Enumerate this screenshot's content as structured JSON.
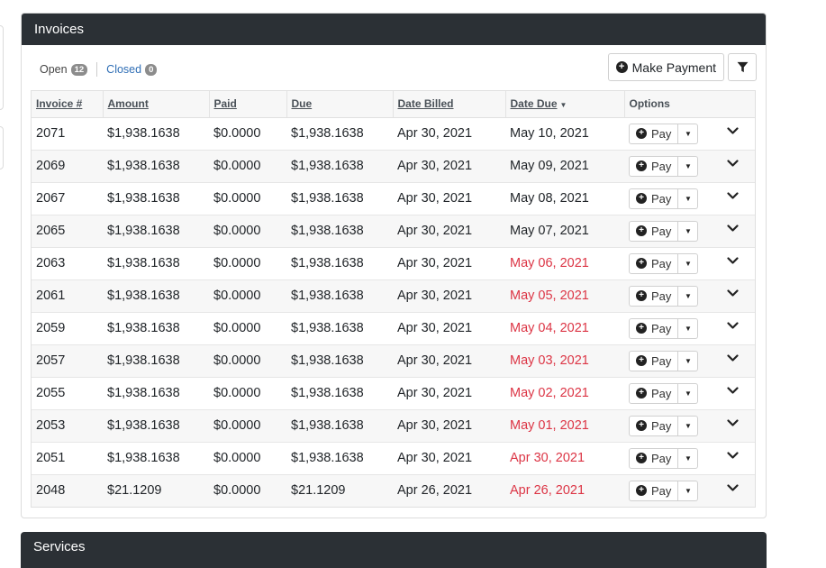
{
  "invoices_panel": {
    "title": "Invoices",
    "tabs": [
      {
        "label": "Open",
        "count": "12"
      },
      {
        "label": "Closed",
        "count": "0"
      }
    ],
    "make_payment_label": "Make Payment",
    "plus_glyph": "+",
    "filter_icon": "filter-icon",
    "columns": [
      "Invoice #",
      "Amount",
      "Paid",
      "Due",
      "Date Billed",
      "Date Due",
      "Options"
    ],
    "sorted_column": "Date Due",
    "pay_label": "Pay",
    "overdue_color": "#dc3545",
    "header_bg_color": "#2b3035",
    "rows": [
      {
        "invoice": "2071",
        "amount": "$1,938.1638",
        "paid": "$0.0000",
        "due": "$1,938.1638",
        "billed": "Apr 30, 2021",
        "date_due": "May 10, 2021",
        "overdue": false
      },
      {
        "invoice": "2069",
        "amount": "$1,938.1638",
        "paid": "$0.0000",
        "due": "$1,938.1638",
        "billed": "Apr 30, 2021",
        "date_due": "May 09, 2021",
        "overdue": false
      },
      {
        "invoice": "2067",
        "amount": "$1,938.1638",
        "paid": "$0.0000",
        "due": "$1,938.1638",
        "billed": "Apr 30, 2021",
        "date_due": "May 08, 2021",
        "overdue": false
      },
      {
        "invoice": "2065",
        "amount": "$1,938.1638",
        "paid": "$0.0000",
        "due": "$1,938.1638",
        "billed": "Apr 30, 2021",
        "date_due": "May 07, 2021",
        "overdue": false
      },
      {
        "invoice": "2063",
        "amount": "$1,938.1638",
        "paid": "$0.0000",
        "due": "$1,938.1638",
        "billed": "Apr 30, 2021",
        "date_due": "May 06, 2021",
        "overdue": true
      },
      {
        "invoice": "2061",
        "amount": "$1,938.1638",
        "paid": "$0.0000",
        "due": "$1,938.1638",
        "billed": "Apr 30, 2021",
        "date_due": "May 05, 2021",
        "overdue": true
      },
      {
        "invoice": "2059",
        "amount": "$1,938.1638",
        "paid": "$0.0000",
        "due": "$1,938.1638",
        "billed": "Apr 30, 2021",
        "date_due": "May 04, 2021",
        "overdue": true
      },
      {
        "invoice": "2057",
        "amount": "$1,938.1638",
        "paid": "$0.0000",
        "due": "$1,938.1638",
        "billed": "Apr 30, 2021",
        "date_due": "May 03, 2021",
        "overdue": true
      },
      {
        "invoice": "2055",
        "amount": "$1,938.1638",
        "paid": "$0.0000",
        "due": "$1,938.1638",
        "billed": "Apr 30, 2021",
        "date_due": "May 02, 2021",
        "overdue": true
      },
      {
        "invoice": "2053",
        "amount": "$1,938.1638",
        "paid": "$0.0000",
        "due": "$1,938.1638",
        "billed": "Apr 30, 2021",
        "date_due": "May 01, 2021",
        "overdue": true
      },
      {
        "invoice": "2051",
        "amount": "$1,938.1638",
        "paid": "$0.0000",
        "due": "$1,938.1638",
        "billed": "Apr 30, 2021",
        "date_due": "Apr 30, 2021",
        "overdue": true
      },
      {
        "invoice": "2048",
        "amount": "$21.1209",
        "paid": "$0.0000",
        "due": "$21.1209",
        "billed": "Apr 26, 2021",
        "date_due": "Apr 26, 2021",
        "overdue": true
      }
    ]
  },
  "services_panel": {
    "title": "Services"
  }
}
